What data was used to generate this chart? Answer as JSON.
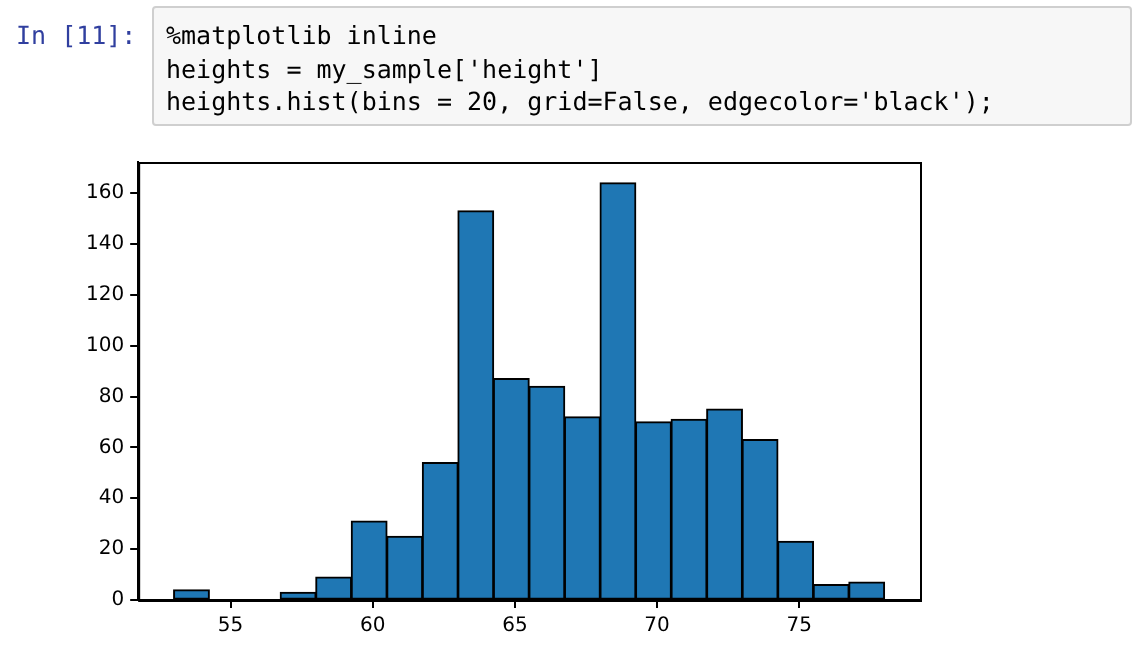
{
  "chart_data": {
    "type": "histogram",
    "annotations": [
      "In [11]:",
      "%matplotlib inline",
      "heights = my_sample['height']",
      "heights.hist(bins = 20, grid=False, edgecolor='black');"
    ],
    "bins": [
      53,
      54.25,
      55.5,
      56.75,
      58,
      59.25,
      60.5,
      61.75,
      63,
      64.25,
      65.5,
      66.75,
      68,
      69.25,
      70.5,
      71.75,
      73,
      74.25,
      75.5,
      76.75,
      78
    ],
    "values": [
      4,
      0,
      0,
      3,
      9,
      31,
      25,
      54,
      153,
      87,
      84,
      72,
      164,
      70,
      71,
      75,
      63,
      23,
      6,
      7
    ],
    "color": "#1f77b4",
    "xlim": [
      51.75,
      79.25
    ],
    "xticks": [
      55,
      60,
      65,
      70,
      75
    ],
    "ylim": [
      0,
      172.2
    ],
    "yticks": [
      0,
      20,
      40,
      60,
      80,
      100,
      120,
      140,
      160
    ],
    "grid": false,
    "legend": false
  }
}
